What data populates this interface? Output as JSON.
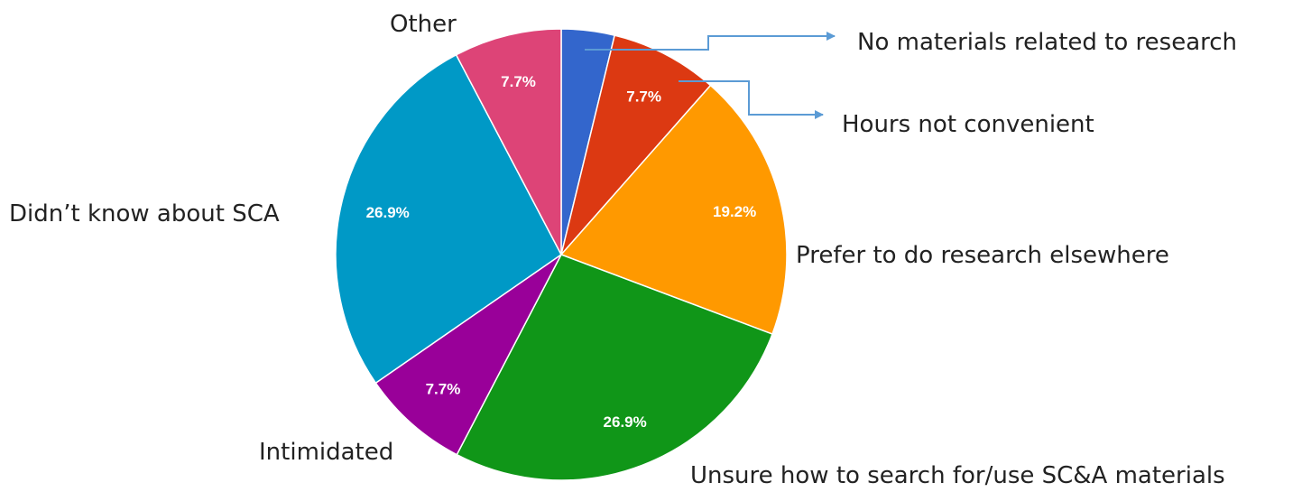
{
  "chart_data": {
    "type": "pie",
    "categories": [
      "No materials related to research",
      "Hours not convenient",
      "Prefer to do research elsewhere",
      "Unsure how to search for/use SC&A materials",
      "Intimidated",
      "Didn’t know about SCA",
      "Other"
    ],
    "values": [
      3.8,
      7.7,
      19.2,
      26.9,
      7.7,
      26.9,
      7.7
    ],
    "value_labels": [
      null,
      "7.7%",
      "19.2%",
      "26.9%",
      "7.7%",
      "26.9%",
      "7.7%"
    ],
    "colors": [
      "#3366cc",
      "#dc3912",
      "#ff9900",
      "#109618",
      "#990099",
      "#0099c6",
      "#dd4477"
    ]
  }
}
